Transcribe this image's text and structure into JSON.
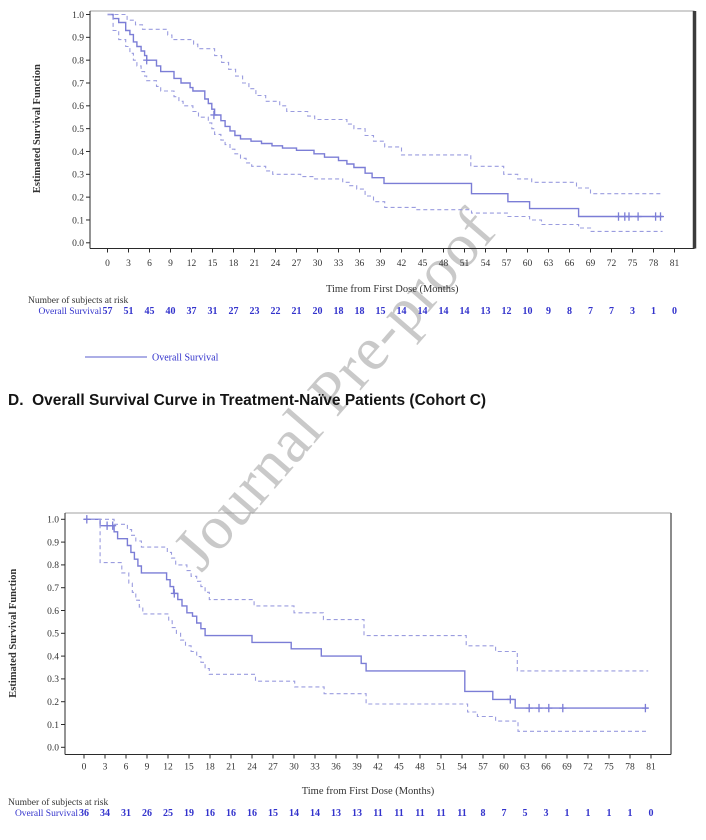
{
  "watermark": {
    "text": "Journal Pre-proof"
  },
  "section_title": "D.  Overall Survival Curve in Treatment-Naïve Patients (Cohort C)",
  "colors": {
    "curve": "#7b7dd6",
    "ci_band": "#9a9cdf",
    "risk_text": "#3333cc",
    "axis_text": "#333333",
    "frame_dark": "#3c3c3c",
    "watermark": "#c9c9c9"
  },
  "chart_data": [
    {
      "type": "line",
      "variant": "kaplan-meier-step",
      "title": "",
      "xlabel": "Time from First Dose (Months)",
      "ylabel": "Estimated Survival Function",
      "xlim": [
        0,
        81
      ],
      "ylim": [
        0.0,
        1.0
      ],
      "xticks": [
        0,
        3,
        6,
        9,
        12,
        15,
        18,
        21,
        24,
        27,
        30,
        33,
        36,
        39,
        42,
        45,
        48,
        51,
        54,
        57,
        60,
        63,
        66,
        69,
        72,
        75,
        78,
        81
      ],
      "yticks": [
        "0.0",
        "0.1",
        "0.2",
        "0.3",
        "0.4",
        "0.5",
        "0.6",
        "0.7",
        "0.8",
        "0.9",
        "1.0"
      ],
      "grid": false,
      "legend_position": "bottom-left",
      "legend": [
        {
          "label": "Overall Survival",
          "style": "solid"
        }
      ],
      "series": [
        {
          "name": "Overall Survival",
          "style": "solid",
          "points": [
            [
              0,
              1.0
            ],
            [
              0.8,
              0.982
            ],
            [
              1.6,
              0.965
            ],
            [
              2.6,
              0.93
            ],
            [
              3.2,
              0.912
            ],
            [
              3.7,
              0.88
            ],
            [
              4.2,
              0.86
            ],
            [
              4.8,
              0.84
            ],
            [
              5.3,
              0.82
            ],
            [
              5.6,
              0.8
            ],
            [
              7.0,
              0.775
            ],
            [
              7.6,
              0.75
            ],
            [
              9.5,
              0.72
            ],
            [
              10.5,
              0.7
            ],
            [
              11.8,
              0.68
            ],
            [
              12.2,
              0.665
            ],
            [
              13.9,
              0.63
            ],
            [
              14.4,
              0.61
            ],
            [
              14.9,
              0.585
            ],
            [
              15.3,
              0.56
            ],
            [
              16.2,
              0.535
            ],
            [
              16.8,
              0.51
            ],
            [
              17.5,
              0.49
            ],
            [
              18.2,
              0.47
            ],
            [
              19.0,
              0.455
            ],
            [
              20.5,
              0.445
            ],
            [
              22.0,
              0.435
            ],
            [
              23.5,
              0.425
            ],
            [
              25.0,
              0.415
            ],
            [
              27.0,
              0.405
            ],
            [
              29.5,
              0.39
            ],
            [
              31.0,
              0.375
            ],
            [
              33.0,
              0.36
            ],
            [
              34.2,
              0.345
            ],
            [
              35.2,
              0.33
            ],
            [
              36.8,
              0.305
            ],
            [
              37.8,
              0.285
            ],
            [
              39.5,
              0.26
            ],
            [
              52.0,
              0.215
            ],
            [
              57.2,
              0.18
            ],
            [
              60.3,
              0.15
            ],
            [
              67.3,
              0.115
            ],
            [
              79.3,
              0.115
            ]
          ]
        },
        {
          "name": "95% CI upper",
          "style": "dashed",
          "points": [
            [
              0,
              1.0
            ],
            [
              2.8,
              0.975
            ],
            [
              4.0,
              0.955
            ],
            [
              5.0,
              0.935
            ],
            [
              8.6,
              0.91
            ],
            [
              9.2,
              0.89
            ],
            [
              12.3,
              0.87
            ],
            [
              12.9,
              0.85
            ],
            [
              15.3,
              0.82
            ],
            [
              16.3,
              0.79
            ],
            [
              17.3,
              0.76
            ],
            [
              18.3,
              0.73
            ],
            [
              19.3,
              0.7
            ],
            [
              20.2,
              0.675
            ],
            [
              21.2,
              0.645
            ],
            [
              22.6,
              0.62
            ],
            [
              24.6,
              0.6
            ],
            [
              25.6,
              0.575
            ],
            [
              28.6,
              0.555
            ],
            [
              29.6,
              0.54
            ],
            [
              34.2,
              0.52
            ],
            [
              35.2,
              0.5
            ],
            [
              36.8,
              0.47
            ],
            [
              38.0,
              0.445
            ],
            [
              39.6,
              0.42
            ],
            [
              42.0,
              0.385
            ],
            [
              51.9,
              0.335
            ],
            [
              56.6,
              0.3
            ],
            [
              58.6,
              0.28
            ],
            [
              60.6,
              0.265
            ],
            [
              67.0,
              0.24
            ],
            [
              69.0,
              0.215
            ],
            [
              79.3,
              0.215
            ]
          ]
        },
        {
          "name": "95% CI lower",
          "style": "dashed",
          "points": [
            [
              0,
              1.0
            ],
            [
              0.8,
              0.93
            ],
            [
              1.6,
              0.89
            ],
            [
              2.6,
              0.86
            ],
            [
              3.2,
              0.83
            ],
            [
              3.7,
              0.8
            ],
            [
              4.2,
              0.775
            ],
            [
              4.8,
              0.75
            ],
            [
              5.3,
              0.73
            ],
            [
              5.6,
              0.71
            ],
            [
              7.0,
              0.685
            ],
            [
              7.6,
              0.665
            ],
            [
              9.5,
              0.64
            ],
            [
              10.2,
              0.62
            ],
            [
              10.8,
              0.6
            ],
            [
              12.2,
              0.575
            ],
            [
              13.0,
              0.55
            ],
            [
              14.4,
              0.525
            ],
            [
              14.9,
              0.5
            ],
            [
              15.3,
              0.475
            ],
            [
              16.2,
              0.45
            ],
            [
              16.8,
              0.43
            ],
            [
              17.5,
              0.41
            ],
            [
              18.2,
              0.39
            ],
            [
              19.0,
              0.37
            ],
            [
              19.8,
              0.35
            ],
            [
              20.6,
              0.335
            ],
            [
              22.6,
              0.315
            ],
            [
              23.6,
              0.3
            ],
            [
              27.6,
              0.29
            ],
            [
              29.6,
              0.28
            ],
            [
              33.6,
              0.265
            ],
            [
              34.6,
              0.25
            ],
            [
              35.6,
              0.235
            ],
            [
              36.8,
              0.205
            ],
            [
              38.0,
              0.18
            ],
            [
              39.6,
              0.155
            ],
            [
              44.0,
              0.145
            ],
            [
              52.0,
              0.13
            ],
            [
              57.2,
              0.115
            ],
            [
              60.3,
              0.1
            ],
            [
              62.0,
              0.08
            ],
            [
              67.3,
              0.065
            ],
            [
              69.0,
              0.05
            ],
            [
              79.3,
              0.05
            ]
          ]
        }
      ],
      "censor_marks": [
        [
          5.6,
          0.8
        ],
        [
          15.2,
          0.56
        ],
        [
          73.0,
          0.115
        ],
        [
          73.9,
          0.115
        ],
        [
          74.5,
          0.115
        ],
        [
          75.8,
          0.115
        ],
        [
          78.3,
          0.115
        ],
        [
          79.0,
          0.115
        ]
      ],
      "at_risk": {
        "header": "Number of subjects at risk",
        "row_label": "Overall Survival",
        "times": [
          0,
          3,
          6,
          9,
          12,
          15,
          18,
          21,
          24,
          27,
          30,
          33,
          36,
          39,
          42,
          45,
          48,
          51,
          54,
          57,
          60,
          63,
          66,
          69,
          72,
          75,
          78,
          81
        ],
        "counts": [
          57,
          51,
          45,
          40,
          37,
          31,
          27,
          23,
          22,
          21,
          20,
          18,
          18,
          15,
          14,
          14,
          14,
          14,
          13,
          12,
          10,
          9,
          8,
          7,
          7,
          3,
          1,
          0
        ]
      }
    },
    {
      "type": "line",
      "variant": "kaplan-meier-step",
      "title": "",
      "xlabel": "Time from First Dose (Months)",
      "ylabel": "Estimated Survival Function",
      "xlim": [
        0,
        81
      ],
      "ylim": [
        0.0,
        1.0
      ],
      "xticks": [
        0,
        3,
        6,
        9,
        12,
        15,
        18,
        21,
        24,
        27,
        30,
        33,
        36,
        39,
        42,
        45,
        48,
        51,
        54,
        57,
        60,
        63,
        66,
        69,
        72,
        75,
        78,
        81
      ],
      "yticks": [
        "0.0",
        "0.1",
        "0.2",
        "0.3",
        "0.4",
        "0.5",
        "0.6",
        "0.7",
        "0.8",
        "0.9",
        "1.0"
      ],
      "grid": false,
      "legend_position": "none",
      "legend": [],
      "series": [
        {
          "name": "Overall Survival",
          "style": "solid",
          "points": [
            [
              0,
              1.0
            ],
            [
              2.3,
              0.972
            ],
            [
              4.3,
              0.945
            ],
            [
              4.8,
              0.915
            ],
            [
              6.2,
              0.885
            ],
            [
              6.7,
              0.855
            ],
            [
              7.2,
              0.825
            ],
            [
              7.7,
              0.795
            ],
            [
              8.2,
              0.765
            ],
            [
              11.8,
              0.735
            ],
            [
              12.3,
              0.705
            ],
            [
              12.8,
              0.675
            ],
            [
              13.4,
              0.648
            ],
            [
              14.0,
              0.62
            ],
            [
              14.7,
              0.59
            ],
            [
              15.5,
              0.575
            ],
            [
              16.1,
              0.545
            ],
            [
              16.7,
              0.52
            ],
            [
              17.3,
              0.49
            ],
            [
              24.0,
              0.46
            ],
            [
              29.6,
              0.432
            ],
            [
              33.9,
              0.4
            ],
            [
              39.6,
              0.368
            ],
            [
              40.3,
              0.335
            ],
            [
              54.4,
              0.245
            ],
            [
              58.4,
              0.21
            ],
            [
              61.6,
              0.172
            ],
            [
              80.6,
              0.172
            ]
          ]
        },
        {
          "name": "95% CI upper",
          "style": "dashed",
          "points": [
            [
              0,
              1.0
            ],
            [
              4.3,
              0.978
            ],
            [
              6.2,
              0.955
            ],
            [
              6.8,
              0.93
            ],
            [
              7.4,
              0.905
            ],
            [
              8.2,
              0.878
            ],
            [
              11.9,
              0.855
            ],
            [
              12.5,
              0.83
            ],
            [
              13.1,
              0.8
            ],
            [
              14.7,
              0.775
            ],
            [
              15.3,
              0.75
            ],
            [
              16.1,
              0.728
            ],
            [
              16.7,
              0.705
            ],
            [
              17.3,
              0.68
            ],
            [
              17.9,
              0.648
            ],
            [
              24.3,
              0.62
            ],
            [
              30.0,
              0.59
            ],
            [
              34.2,
              0.56
            ],
            [
              40.0,
              0.49
            ],
            [
              54.6,
              0.445
            ],
            [
              58.8,
              0.42
            ],
            [
              61.9,
              0.335
            ],
            [
              80.6,
              0.335
            ]
          ]
        },
        {
          "name": "95% CI lower",
          "style": "dashed",
          "points": [
            [
              0,
              1.0
            ],
            [
              2.3,
              0.81
            ],
            [
              5.4,
              0.765
            ],
            [
              6.4,
              0.72
            ],
            [
              6.9,
              0.68
            ],
            [
              7.4,
              0.645
            ],
            [
              7.9,
              0.615
            ],
            [
              8.4,
              0.585
            ],
            [
              12.1,
              0.555
            ],
            [
              12.6,
              0.525
            ],
            [
              13.2,
              0.5
            ],
            [
              13.8,
              0.47
            ],
            [
              14.5,
              0.445
            ],
            [
              15.3,
              0.42
            ],
            [
              16.1,
              0.398
            ],
            [
              16.7,
              0.373
            ],
            [
              17.3,
              0.345
            ],
            [
              17.9,
              0.32
            ],
            [
              24.5,
              0.29
            ],
            [
              30.1,
              0.265
            ],
            [
              34.3,
              0.235
            ],
            [
              40.3,
              0.19
            ],
            [
              54.8,
              0.155
            ],
            [
              56.2,
              0.135
            ],
            [
              58.8,
              0.115
            ],
            [
              62.0,
              0.07
            ],
            [
              80.6,
              0.07
            ]
          ]
        }
      ],
      "censor_marks": [
        [
          0.4,
          1.0
        ],
        [
          3.3,
          0.972
        ],
        [
          4.1,
          0.972
        ],
        [
          12.9,
          0.675
        ],
        [
          60.9,
          0.21
        ],
        [
          63.6,
          0.172
        ],
        [
          65.0,
          0.172
        ],
        [
          66.4,
          0.172
        ],
        [
          68.4,
          0.172
        ],
        [
          80.2,
          0.172
        ]
      ],
      "at_risk": {
        "header": "Number of subjects at risk",
        "row_label": "Overall Survival",
        "times": [
          0,
          3,
          6,
          9,
          12,
          15,
          18,
          21,
          24,
          27,
          30,
          33,
          36,
          39,
          42,
          45,
          48,
          51,
          54,
          57,
          60,
          63,
          66,
          69,
          72,
          75,
          78,
          81
        ],
        "counts": [
          36,
          34,
          31,
          26,
          25,
          19,
          16,
          16,
          16,
          15,
          14,
          14,
          13,
          13,
          11,
          11,
          11,
          11,
          11,
          8,
          7,
          5,
          3,
          1,
          1,
          1,
          1,
          0
        ]
      }
    }
  ]
}
